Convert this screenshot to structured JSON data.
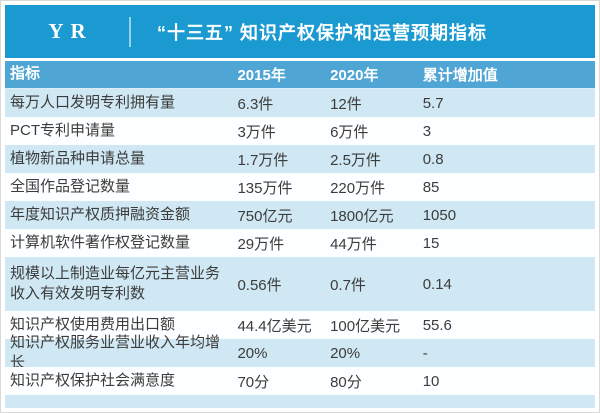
{
  "header": {
    "logo": "YR",
    "title": "“十三五” 知识产权保护和运营预期指标"
  },
  "chart_data": {
    "type": "table",
    "title": "“十三五” 知识产权保护和运营预期指标",
    "columns": [
      "指标",
      "2015年",
      "2020年",
      "累计增加值"
    ],
    "rows": [
      [
        "每万人口发明专利拥有量",
        "6.3件",
        "12件",
        "5.7"
      ],
      [
        "PCT专利申请量",
        "3万件",
        "6万件",
        "3"
      ],
      [
        "植物新品种申请总量",
        "1.7万件",
        "2.5万件",
        "0.8"
      ],
      [
        "全国作品登记数量",
        "135万件",
        "220万件",
        "85"
      ],
      [
        "年度知识产权质押融资金额",
        "750亿元",
        "1800亿元",
        "1050"
      ],
      [
        "计算机软件著作权登记数量",
        "29万件",
        "44万件",
        "15"
      ],
      [
        "规模以上制造业每亿元主营业务收入有效发明专利数",
        "0.56件",
        "0.7件",
        "0.14"
      ],
      [
        "知识产权使用费用出口额",
        "44.4亿美元",
        "100亿美元",
        "55.6"
      ],
      [
        "知识产权服务业营业收入年均增长",
        "20%",
        "20%",
        "-"
      ],
      [
        "知识产权保护社会满意度",
        "70分",
        "80分",
        "10"
      ]
    ]
  },
  "colors": {
    "band_blue": "#1b9ad1",
    "table_header_blue": "#4fa5d4",
    "row_light_blue": "#cfe8f3",
    "row_white": "#fdfeff",
    "text_dark": "#3c3c3c",
    "text_white": "#ffffff"
  }
}
